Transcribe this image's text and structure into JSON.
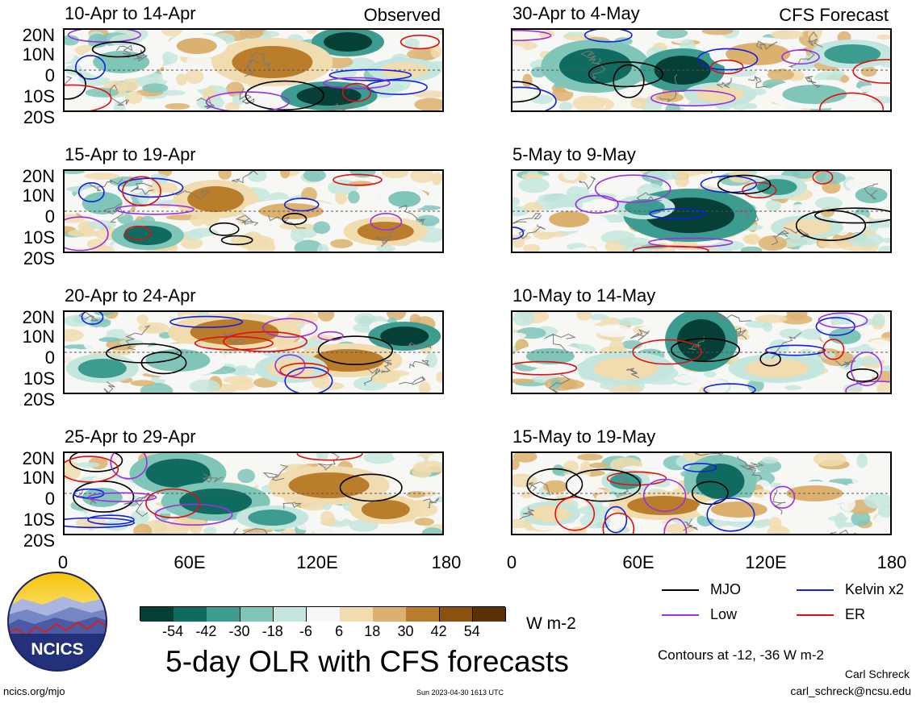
{
  "panels": [
    {
      "id": "p1",
      "title": "10-Apr to 14-Apr",
      "source": "Observed"
    },
    {
      "id": "p2",
      "title": "30-Apr to 4-May",
      "source": "CFS Forecast"
    },
    {
      "id": "p3",
      "title": "15-Apr to 19-Apr",
      "source": ""
    },
    {
      "id": "p4",
      "title": "5-May to 9-May",
      "source": ""
    },
    {
      "id": "p5",
      "title": "20-Apr to 24-Apr",
      "source": ""
    },
    {
      "id": "p6",
      "title": "10-May to 14-May",
      "source": ""
    },
    {
      "id": "p7",
      "title": "25-Apr to 29-Apr",
      "source": ""
    },
    {
      "id": "p8",
      "title": "15-May to 19-May",
      "source": ""
    }
  ],
  "axes": {
    "lat_ticks": [
      "20N",
      "10N",
      "0",
      "10S",
      "20S"
    ],
    "lon_ticks": [
      "0",
      "60E",
      "120E",
      "180"
    ]
  },
  "colorbar": {
    "labels": [
      "-54",
      "-42",
      "-30",
      "-18",
      "-6",
      "6",
      "18",
      "30",
      "42",
      "54"
    ],
    "colors": [
      "#053f35",
      "#0f6b5f",
      "#3b9c8f",
      "#7fc5b8",
      "#c4e6de",
      "#f7f7f7",
      "#f0dcae",
      "#dcb16e",
      "#b97d2c",
      "#8a520e",
      "#5a3006"
    ],
    "units": "W m-2"
  },
  "legend": {
    "mjo": {
      "label": "MJO",
      "color": "#000000"
    },
    "kelvin": {
      "label": "Kelvin x2",
      "color": "#1020e0"
    },
    "low": {
      "label": "Low",
      "color": "#9a30e0"
    },
    "er": {
      "label": "ER",
      "color": "#e01010"
    },
    "contours_note": "Contours at -12, -36 W m-2"
  },
  "footer": {
    "main_title": "5-day OLR with CFS forecasts",
    "logo_text": "NCICS",
    "url": "ncics.org/mjo",
    "timestamp": "Sun 2023-04-30 1613 UTC",
    "author": "Carl Schreck",
    "email": "carl_schreck@ncsu.edu"
  },
  "chart_data": {
    "type": "heatmap",
    "title": "5-day OLR with CFS forecasts",
    "variable": "OLR anomaly",
    "units": "W m-2",
    "xlim": [
      0,
      180
    ],
    "ylim": [
      -20,
      20
    ],
    "x_ticks": [
      "0",
      "60E",
      "120E",
      "180"
    ],
    "y_ticks": [
      "20N",
      "10N",
      "0",
      "10S",
      "20S"
    ],
    "color_levels": [
      -54,
      -42,
      -30,
      -18,
      -6,
      6,
      18,
      30,
      42,
      54
    ],
    "contour_levels": [
      -12,
      -36
    ],
    "series": [
      {
        "name": "MJO",
        "color": "#000000"
      },
      {
        "name": "Kelvin x2",
        "color": "#1020e0"
      },
      {
        "name": "Low",
        "color": "#9a30e0"
      },
      {
        "name": "ER",
        "color": "#e01010"
      }
    ],
    "periods_observed": [
      "10-Apr to 14-Apr",
      "15-Apr to 19-Apr",
      "20-Apr to 24-Apr",
      "25-Apr to 29-Apr"
    ],
    "periods_forecast": [
      "30-Apr to 4-May",
      "5-May to 9-May",
      "10-May to 14-May",
      "15-May to 19-May"
    ]
  }
}
